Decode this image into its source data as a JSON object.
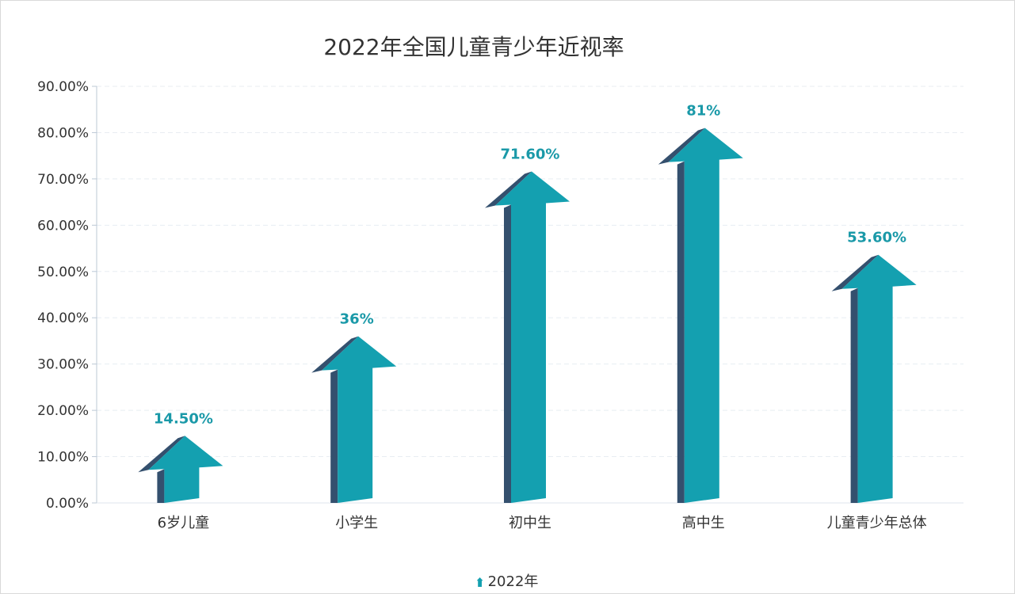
{
  "chart_data": {
    "type": "bar",
    "title": "2022年全国儿童青少年近视率",
    "categories": [
      "6岁儿童",
      "小学生",
      "初中生",
      "高中生",
      "儿童青少年总体"
    ],
    "series": [
      {
        "name": "2022年",
        "values": [
          14.5,
          36,
          71.6,
          81,
          53.6
        ],
        "data_labels": [
          "14.50%",
          "36%",
          "71.60%",
          "81%",
          "53.60%"
        ]
      }
    ],
    "ylim": [
      0,
      90
    ],
    "y_ticks": [
      0,
      10,
      20,
      30,
      40,
      50,
      60,
      70,
      80,
      90
    ],
    "y_tick_labels": [
      "0.00%",
      "10.00%",
      "20.00%",
      "30.00%",
      "40.00%",
      "50.00%",
      "60.00%",
      "70.00%",
      "80.00%",
      "90.00%"
    ],
    "grid": true,
    "legend_position": "bottom",
    "colors": {
      "arrow_front": "#14a0b0",
      "arrow_side": "#34506e",
      "label": "#1a99a8"
    }
  }
}
